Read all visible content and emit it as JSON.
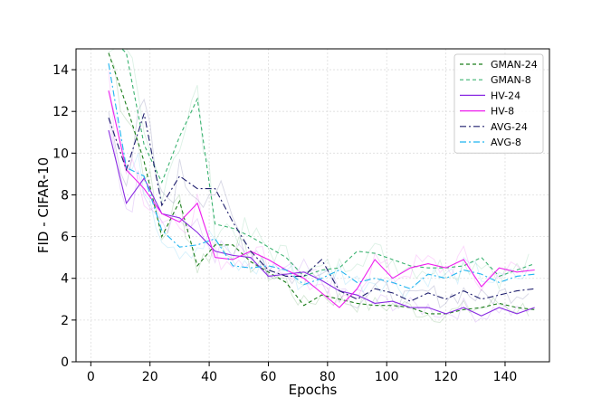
{
  "chart_data": {
    "type": "line",
    "xlabel": "Epochs",
    "ylabel": "FID - CIFAR-10",
    "xlim": [
      -5,
      155
    ],
    "ylim": [
      0,
      15
    ],
    "xticks": [
      0,
      20,
      40,
      60,
      80,
      100,
      120,
      140
    ],
    "yticks": [
      0,
      2,
      4,
      6,
      8,
      10,
      12,
      14
    ],
    "grid": true,
    "legend_position": "top-right",
    "x": [
      6,
      12,
      18,
      24,
      30,
      36,
      42,
      48,
      54,
      60,
      66,
      72,
      78,
      84,
      90,
      96,
      102,
      108,
      114,
      120,
      126,
      132,
      138,
      144,
      150
    ],
    "series": [
      {
        "name": "GMAN-24",
        "color": "#1a7d1a",
        "dash": "4,3",
        "values": [
          14.8,
          12.3,
          9.6,
          6.0,
          7.7,
          4.6,
          5.6,
          5.6,
          4.8,
          4.3,
          3.8,
          2.7,
          3.2,
          3.0,
          2.8,
          2.7,
          2.7,
          2.6,
          2.3,
          2.3,
          2.5,
          2.6,
          2.8,
          2.6,
          2.5
        ]
      },
      {
        "name": "GMAN-8",
        "color": "#3cb371",
        "dash": "4,3",
        "values": [
          15.6,
          14.8,
          10.4,
          8.6,
          10.8,
          12.6,
          6.6,
          6.4,
          6.0,
          5.5,
          5.0,
          4.1,
          4.4,
          4.5,
          5.3,
          5.2,
          4.9,
          4.6,
          4.5,
          4.5,
          4.6,
          5.0,
          4.1,
          4.4,
          4.7
        ]
      },
      {
        "name": "HV-24",
        "color": "#8a2be2",
        "dash": "",
        "values": [
          11.1,
          7.6,
          8.8,
          7.1,
          6.9,
          6.2,
          5.3,
          5.1,
          5.0,
          4.1,
          4.2,
          4.3,
          3.9,
          3.4,
          3.2,
          2.8,
          2.9,
          2.6,
          2.6,
          2.3,
          2.6,
          2.2,
          2.6,
          2.3,
          2.6
        ]
      },
      {
        "name": "HV-8",
        "color": "#ee1fee",
        "dash": "",
        "values": [
          13.0,
          9.2,
          8.3,
          7.1,
          6.7,
          7.6,
          5.0,
          4.9,
          5.3,
          4.9,
          4.4,
          4.0,
          3.3,
          2.6,
          3.5,
          4.9,
          4.0,
          4.5,
          4.7,
          4.5,
          4.9,
          3.6,
          4.5,
          4.3,
          4.4
        ]
      },
      {
        "name": "AVG-24",
        "color": "#1f1f6e",
        "dash": "7,3,2,3",
        "values": [
          11.7,
          9.2,
          11.9,
          7.5,
          8.9,
          8.3,
          8.3,
          6.7,
          5.3,
          4.4,
          4.1,
          4.1,
          4.9,
          3.4,
          3.0,
          3.5,
          3.3,
          2.9,
          3.3,
          3.0,
          3.4,
          3.0,
          3.2,
          3.4,
          3.5
        ]
      },
      {
        "name": "AVG-8",
        "color": "#1fb4f0",
        "dash": "7,3,2,3",
        "values": [
          14.3,
          9.3,
          8.9,
          6.3,
          5.5,
          5.6,
          5.9,
          4.6,
          4.5,
          4.6,
          4.4,
          3.7,
          4.0,
          4.4,
          3.8,
          4.0,
          3.8,
          3.5,
          4.2,
          4.0,
          4.4,
          4.2,
          3.8,
          4.1,
          4.2
        ]
      }
    ]
  }
}
